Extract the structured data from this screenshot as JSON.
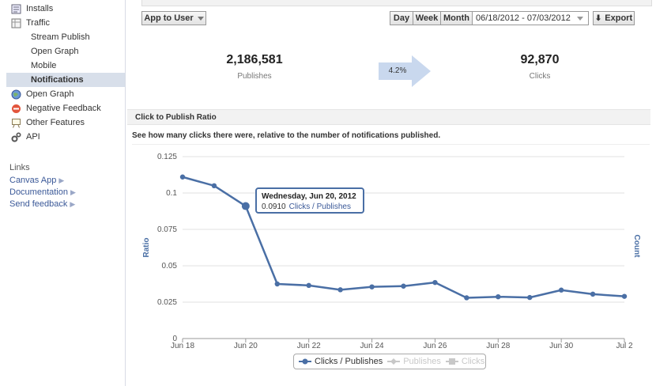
{
  "sidebar": {
    "items": [
      {
        "label": "Installs",
        "icon": "installs-icon",
        "sub": false,
        "selected": false
      },
      {
        "label": "Traffic",
        "icon": "traffic-icon",
        "sub": false,
        "selected": false
      },
      {
        "label": "Stream Publish",
        "icon": "",
        "sub": true,
        "selected": false
      },
      {
        "label": "Open Graph",
        "icon": "",
        "sub": true,
        "selected": false
      },
      {
        "label": "Mobile",
        "icon": "",
        "sub": true,
        "selected": false
      },
      {
        "label": "Notifications",
        "icon": "",
        "sub": true,
        "selected": true
      },
      {
        "label": "Open Graph",
        "icon": "globe-icon",
        "sub": false,
        "selected": false
      },
      {
        "label": "Negative Feedback",
        "icon": "no-entry-icon",
        "sub": false,
        "selected": false
      },
      {
        "label": "Other Features",
        "icon": "easel-icon",
        "sub": false,
        "selected": false
      },
      {
        "label": "API",
        "icon": "gears-icon",
        "sub": false,
        "selected": false
      }
    ],
    "links_title": "Links",
    "links": [
      "Canvas App",
      "Documentation",
      "Send feedback"
    ]
  },
  "toolbar": {
    "app_to_user": "App to User",
    "day": "Day",
    "week": "Week",
    "month": "Month",
    "date_range": "06/18/2012 - 07/03/2012",
    "export": "Export"
  },
  "summary": {
    "publishes_value": "2,186,581",
    "publishes_label": "Publishes",
    "ratio": "4.2%",
    "clicks_value": "92,870",
    "clicks_label": "Clicks"
  },
  "section": {
    "title": "Click to Publish Ratio",
    "description": "See how many clicks there were, relative to the number of notifications published."
  },
  "tooltip": {
    "date": "Wednesday, Jun 20, 2012",
    "value": "0.0910",
    "series": "Clicks / Publishes"
  },
  "legend": [
    "Clicks / Publishes",
    "Publishes",
    "Clicks"
  ],
  "colors": {
    "series": "#4a6fa5",
    "selected_nav": "#d8dfea",
    "link": "#3b5998"
  },
  "chart_data": {
    "type": "line",
    "x": [
      "Jun 18",
      "Jun 19",
      "Jun 20",
      "Jun 21",
      "Jun 22",
      "Jun 23",
      "Jun 24",
      "Jun 25",
      "Jun 26",
      "Jun 27",
      "Jun 28",
      "Jun 29",
      "Jun 30",
      "Jul 1",
      "Jul 2"
    ],
    "x_tick_labels": [
      "Jun 18",
      "Jun 20",
      "Jun 22",
      "Jun 24",
      "Jun 26",
      "Jun 28",
      "Jun 30",
      "Jul 2"
    ],
    "y_tick_labels": [
      "0",
      "0.025",
      "0.05",
      "0.075",
      "0.1",
      "0.125"
    ],
    "series": [
      {
        "name": "Clicks / Publishes",
        "values": [
          0.111,
          0.105,
          0.091,
          0.0375,
          0.0365,
          0.0335,
          0.0355,
          0.036,
          0.0385,
          0.028,
          0.0287,
          0.0282,
          0.0333,
          0.0305,
          0.029
        ]
      }
    ],
    "ylabel": "Ratio",
    "y2label": "Count",
    "ylim": [
      0,
      0.125
    ],
    "grid": true,
    "legend": "bottom"
  }
}
